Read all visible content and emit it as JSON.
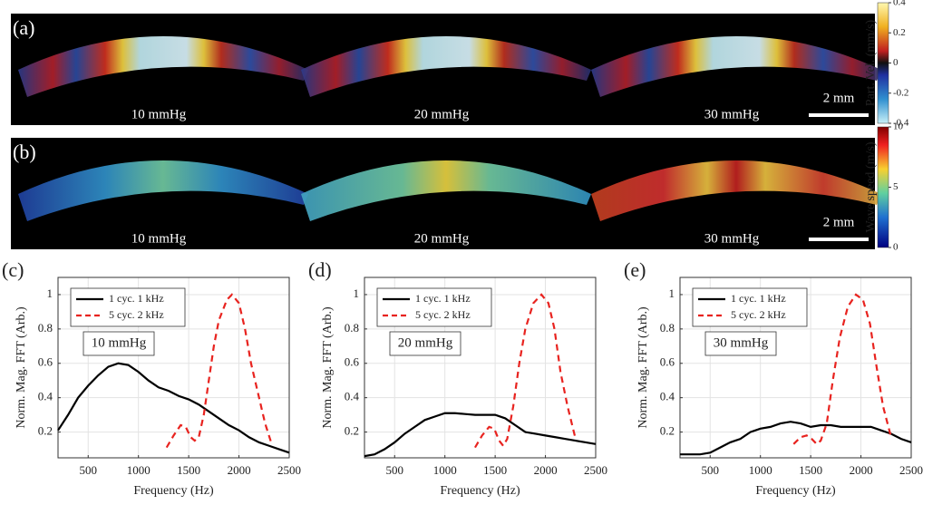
{
  "image_panels": [
    {
      "label": "(a)",
      "conditions": [
        "10 mmHg",
        "20 mmHg",
        "30 mmHg"
      ],
      "scale_bar": "2 mm",
      "colorbar": {
        "label": "Part. Vel. (mm/s)",
        "lim": [
          -0.4,
          0.4
        ],
        "ticks": [
          0.4,
          0.2,
          0,
          -0.2,
          -0.4
        ]
      }
    },
    {
      "label": "(b)",
      "conditions": [
        "10 mmHg",
        "20 mmHg",
        "30 mmHg"
      ],
      "scale_bar": "2 mm",
      "colorbar": {
        "label": "Wave speed (m/s)",
        "lim": [
          0,
          10
        ],
        "ticks": [
          10,
          5,
          0
        ]
      }
    }
  ],
  "chart_data": [
    {
      "type": "line",
      "panel_label": "(c)",
      "annotation": "10 mmHg",
      "xlabel": "Frequency (Hz)",
      "ylabel": "Norm. Mag. FFT (Arb.)",
      "xlim": [
        200,
        2500
      ],
      "ylim": [
        0.05,
        1.1
      ],
      "xticks": [
        500,
        1000,
        1500,
        2000,
        2500
      ],
      "yticks": [
        0.2,
        0.4,
        0.6,
        0.8,
        1
      ],
      "grid": true,
      "legend": "upper left",
      "series": [
        {
          "name": "1 cyc. 1 kHz",
          "color": "#000000",
          "line_style": "solid",
          "x": [
            200,
            300,
            400,
            500,
            600,
            700,
            800,
            900,
            1000,
            1100,
            1200,
            1300,
            1400,
            1500,
            1600,
            1700,
            1800,
            1900,
            2000,
            2100,
            2200,
            2300,
            2400,
            2500
          ],
          "values": [
            0.21,
            0.3,
            0.4,
            0.47,
            0.53,
            0.58,
            0.6,
            0.59,
            0.55,
            0.5,
            0.46,
            0.44,
            0.41,
            0.39,
            0.36,
            0.32,
            0.28,
            0.24,
            0.21,
            0.17,
            0.14,
            0.12,
            0.1,
            0.08
          ]
        },
        {
          "name": "5 cyc. 2 kHz",
          "color": "#e8231f",
          "line_style": "dashed",
          "x": [
            1280,
            1350,
            1420,
            1470,
            1520,
            1560,
            1600,
            1650,
            1700,
            1750,
            1800,
            1880,
            1930,
            2000,
            2060,
            2120,
            2200,
            2260,
            2320
          ],
          "values": [
            0.11,
            0.18,
            0.24,
            0.23,
            0.17,
            0.15,
            0.17,
            0.3,
            0.5,
            0.7,
            0.85,
            0.97,
            1.0,
            0.95,
            0.8,
            0.6,
            0.4,
            0.25,
            0.14
          ]
        }
      ]
    },
    {
      "type": "line",
      "panel_label": "(d)",
      "annotation": "20 mmHg",
      "xlabel": "Frequency (Hz)",
      "ylabel": "Norm. Mag. FFT (Arb.)",
      "xlim": [
        200,
        2500
      ],
      "ylim": [
        0.05,
        1.1
      ],
      "xticks": [
        500,
        1000,
        1500,
        2000,
        2500
      ],
      "yticks": [
        0.2,
        0.4,
        0.6,
        0.8,
        1
      ],
      "grid": true,
      "legend": "upper left",
      "series": [
        {
          "name": "1 cyc. 1 kHz",
          "color": "#000000",
          "line_style": "solid",
          "x": [
            200,
            300,
            400,
            500,
            600,
            700,
            800,
            900,
            1000,
            1100,
            1200,
            1300,
            1400,
            1500,
            1600,
            1700,
            1800,
            1900,
            2000,
            2100,
            2200,
            2300,
            2400,
            2500
          ],
          "values": [
            0.06,
            0.07,
            0.1,
            0.14,
            0.19,
            0.23,
            0.27,
            0.29,
            0.31,
            0.31,
            0.305,
            0.3,
            0.3,
            0.3,
            0.28,
            0.24,
            0.2,
            0.19,
            0.18,
            0.17,
            0.16,
            0.15,
            0.14,
            0.13
          ]
        },
        {
          "name": "5 cyc. 2 kHz",
          "color": "#e8231f",
          "line_style": "dashed",
          "x": [
            1300,
            1370,
            1440,
            1490,
            1540,
            1580,
            1620,
            1680,
            1740,
            1800,
            1880,
            1960,
            2030,
            2090,
            2150,
            2220,
            2300
          ],
          "values": [
            0.11,
            0.18,
            0.23,
            0.22,
            0.15,
            0.12,
            0.16,
            0.35,
            0.6,
            0.8,
            0.95,
            1.0,
            0.95,
            0.8,
            0.55,
            0.35,
            0.16
          ]
        }
      ]
    },
    {
      "type": "line",
      "panel_label": "(e)",
      "annotation": "30 mmHg",
      "xlabel": "Frequency (Hz)",
      "ylabel": "Norm. Mag. FFT (Arb.)",
      "xlim": [
        200,
        2500
      ],
      "ylim": [
        0.05,
        1.1
      ],
      "xticks": [
        500,
        1000,
        1500,
        2000,
        2500
      ],
      "yticks": [
        0.2,
        0.4,
        0.6,
        0.8,
        1
      ],
      "grid": true,
      "legend": "upper left",
      "series": [
        {
          "name": "1 cyc. 1 kHz",
          "color": "#000000",
          "line_style": "solid",
          "x": [
            200,
            300,
            400,
            500,
            600,
            700,
            800,
            900,
            1000,
            1100,
            1200,
            1300,
            1400,
            1500,
            1600,
            1700,
            1800,
            1900,
            2000,
            2100,
            2200,
            2300,
            2400,
            2500
          ],
          "values": [
            0.07,
            0.07,
            0.07,
            0.08,
            0.11,
            0.14,
            0.16,
            0.2,
            0.22,
            0.23,
            0.25,
            0.26,
            0.25,
            0.23,
            0.24,
            0.24,
            0.23,
            0.23,
            0.23,
            0.23,
            0.21,
            0.19,
            0.16,
            0.14
          ]
        },
        {
          "name": "5 cyc. 2 kHz",
          "color": "#e8231f",
          "line_style": "dashed",
          "x": [
            1330,
            1400,
            1460,
            1510,
            1560,
            1600,
            1660,
            1720,
            1790,
            1870,
            1950,
            2020,
            2090,
            2150,
            2220,
            2300
          ],
          "values": [
            0.13,
            0.17,
            0.18,
            0.16,
            0.13,
            0.15,
            0.25,
            0.5,
            0.75,
            0.93,
            1.0,
            0.97,
            0.83,
            0.6,
            0.35,
            0.17
          ]
        }
      ]
    }
  ]
}
